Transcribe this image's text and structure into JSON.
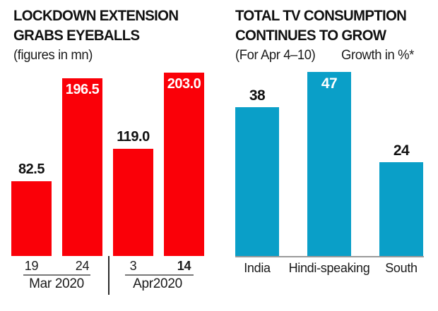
{
  "page": {
    "background": "#ffffff"
  },
  "colors": {
    "red_bar": "#fa0008",
    "blue_bar": "#0a9fc8",
    "text": "#141414",
    "inside_label": "#ffffff",
    "baseline_gray": "#9a9a9a",
    "group_line_gray": "#777777",
    "divider_dark": "#2b2b2b"
  },
  "chart_data": [
    {
      "type": "bar",
      "title": "LOCKDOWN EXTENSION GRABS EYEBALLS",
      "title_lines": "LOCKDOWN EXTENSION\nGRABS EYEBALLS",
      "subtitle": "(figures in mn)",
      "categories": [
        "19",
        "24",
        "3",
        "14"
      ],
      "values": [
        82.5,
        196.5,
        119.0,
        203.0
      ],
      "value_labels": [
        "82.5",
        "196.5",
        "119.0",
        "203.0"
      ],
      "labels_inside_bar": [
        false,
        true,
        false,
        true
      ],
      "emphasized_category_index": 3,
      "groups": [
        {
          "label": "Mar 2020",
          "from": 0,
          "to": 1
        },
        {
          "label": "Apr2020",
          "from": 2,
          "to": 3
        }
      ],
      "bar_color": "#fa0008",
      "xlabel": "",
      "ylabel": "",
      "ylim": [
        0,
        203
      ],
      "grid": false,
      "legend_position": "none"
    },
    {
      "type": "bar",
      "title": "TOTAL TV CONSUMPTION CONTINUES TO GROW",
      "title_lines": "TOTAL TV CONSUMPTION\nCONTINUES TO GROW",
      "subtitle": "(For Apr 4–10)",
      "unit_note": "Growth in %*",
      "categories": [
        "India",
        "Hindi-speaking",
        "South"
      ],
      "values": [
        38,
        47,
        24
      ],
      "value_labels": [
        "38",
        "47",
        "24"
      ],
      "labels_inside_bar": [
        false,
        true,
        false
      ],
      "bar_color": "#0a9fc8",
      "xlabel": "",
      "ylabel": "",
      "ylim": [
        0,
        47
      ],
      "grid": false,
      "legend_position": "none"
    }
  ]
}
